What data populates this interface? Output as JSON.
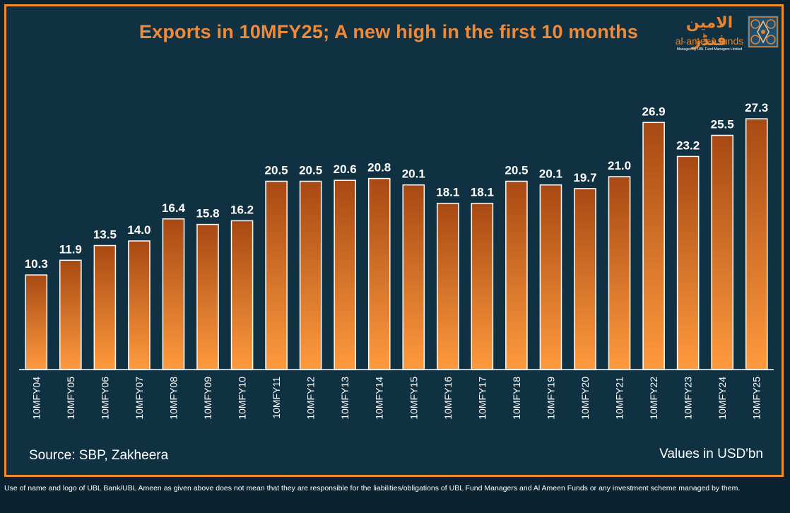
{
  "colors": {
    "background": "#0f3141",
    "border": "#f08a2c",
    "title": "#ef8a3a",
    "bar_top": "#a74913",
    "bar_bottom": "#ff9a3e",
    "bar_outline": "#ffffff"
  },
  "logo": {
    "arabic": "الامين فنڈز",
    "latin": "al-ameen funds",
    "subtitle": "Managed by UBL Fund Managers Limited",
    "emblem_icon": "ornamental-pattern-icon"
  },
  "chart_data": {
    "type": "bar",
    "title": "Exports in 10MFY25; A new high in the first 10 months",
    "xlabel": "",
    "ylabel": "",
    "units_note": "Values in USD'bn",
    "source": "Source: SBP, Zakheera",
    "ylim": [
      0,
      30
    ],
    "grid": false,
    "legend": "none",
    "categories": [
      "10MFY04",
      "10MFY05",
      "10MFY06",
      "10MFY07",
      "10MFY08",
      "10MFY09",
      "10MFY10",
      "10MFY11",
      "10MFY12",
      "10MFY13",
      "10MFY14",
      "10MFY15",
      "10MFY16",
      "10MFY17",
      "10MFY18",
      "10MFY19",
      "10MFY20",
      "10MFY21",
      "10MFY22",
      "10MFY23",
      "10MFY24",
      "10MFY25"
    ],
    "values": [
      10.3,
      11.9,
      13.5,
      14.0,
      16.4,
      15.8,
      16.2,
      20.5,
      20.5,
      20.6,
      20.8,
      20.1,
      18.1,
      18.1,
      20.5,
      20.1,
      19.7,
      21.0,
      26.9,
      23.2,
      25.5,
      27.3
    ],
    "value_labels": [
      "10.3",
      "11.9",
      "13.5",
      "14.0",
      "16.4",
      "15.8",
      "16.2",
      "20.5",
      "20.5",
      "20.6",
      "20.8",
      "20.1",
      "18.1",
      "18.1",
      "20.5",
      "20.1",
      "19.7",
      "21.0",
      "26.9",
      "23.2",
      "25.5",
      "27.3"
    ]
  },
  "footer": {
    "disclaimer": "Use of name and logo of UBL Bank/UBL Ameen as given above does not mean that they are responsible for the liabilities/obligations of UBL Fund Managers and Al Ameen Funds or any investment scheme managed by them."
  }
}
